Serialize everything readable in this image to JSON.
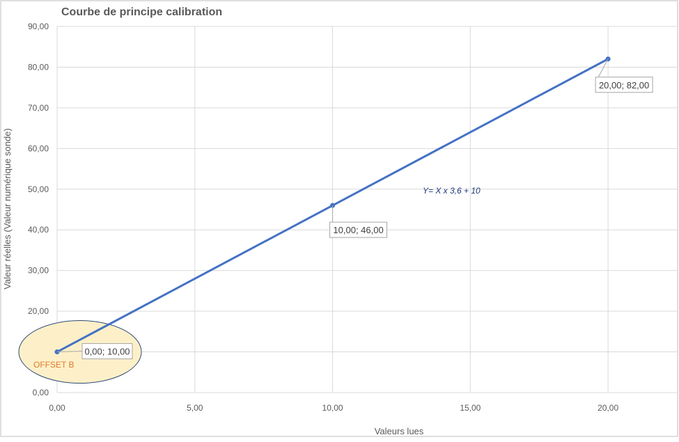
{
  "chart_data": {
    "type": "line",
    "title": "Courbe de principe calibration",
    "xlabel": "Valeurs lues",
    "ylabel": "Valeur réelles (Valeur numérique sonde)",
    "xlim": [
      0,
      22.5
    ],
    "ylim": [
      0,
      90
    ],
    "x_ticks": [
      "0,00",
      "5,00",
      "10,00",
      "15,00",
      "20,00"
    ],
    "y_ticks": [
      "0,00",
      "10,00",
      "20,00",
      "30,00",
      "40,00",
      "50,00",
      "60,00",
      "70,00",
      "80,00",
      "90,00"
    ],
    "grid": true,
    "series": [
      {
        "x": [
          0,
          10,
          20
        ],
        "y": [
          10,
          46,
          82
        ],
        "color": "#4472c4"
      }
    ],
    "data_labels": [
      "0,00; 10,00",
      "10,00; 46,00",
      "20,00; 82,00"
    ],
    "annotations": {
      "equation": "Y= X x 3,6 + 10",
      "offset": "OFFSET B"
    },
    "colors": {
      "line": "#4472c4",
      "grid": "#d9d9d9",
      "highlight_fill": "#fdf0c8",
      "highlight_stroke": "#2e4a7a",
      "offset_text": "#e07a2c",
      "equation_text": "#1f3a7a"
    }
  }
}
